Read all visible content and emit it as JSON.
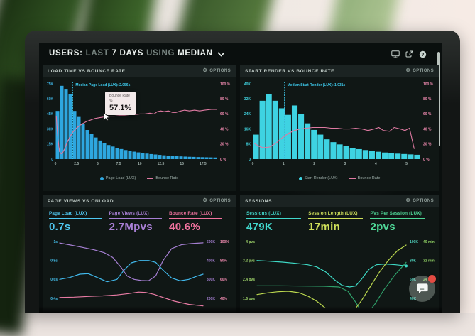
{
  "header": {
    "segments": [
      {
        "t": "USERS:",
        "style": "em"
      },
      {
        "t": "LAST",
        "style": "dim"
      },
      {
        "t": "7 DAYS",
        "style": "em"
      },
      {
        "t": "USING",
        "style": "dim"
      },
      {
        "t": "MEDIAN",
        "style": "em"
      }
    ],
    "icons": [
      "display-icon",
      "share-icon",
      "help-icon"
    ]
  },
  "panels": {
    "load_time": {
      "title": "LOAD TIME VS BOUNCE RATE",
      "options": "OPTIONS"
    },
    "start_render": {
      "title": "START RENDER VS BOUNCE RATE",
      "options": "OPTIONS"
    },
    "page_views": {
      "title": "PAGE VIEWS VS ONLOAD",
      "options": "OPTIONS",
      "metrics": [
        {
          "label": "Page Load (LUX)",
          "value": "0.7s",
          "color": "#4fc8f2"
        },
        {
          "label": "Page Views (LUX)",
          "value": "2.7Mpvs",
          "color": "#a87fd4"
        },
        {
          "label": "Bounce Rate (LUX)",
          "value": "40.6%",
          "color": "#f2739f"
        }
      ]
    },
    "sessions": {
      "title": "SESSIONS",
      "options": "OPTIONS",
      "metrics": [
        {
          "label": "Sessions (LUX)",
          "value": "479K",
          "color": "#41d8cc"
        },
        {
          "label": "Session Length (LUX)",
          "value": "17min",
          "color": "#cfe05a"
        },
        {
          "label": "PVs Per Session (LUX)",
          "value": "2pvs",
          "color": "#4fd998"
        }
      ]
    }
  },
  "chart_data": [
    {
      "type": "bar",
      "title": "LOAD TIME VS BOUNCE RATE",
      "xlim": [
        0,
        19.2
      ],
      "x_ticks": [
        0,
        2.5,
        5,
        7.5,
        10,
        12.5,
        15,
        17.5
      ],
      "y_left": {
        "ticks": [
          "75K",
          "60K",
          "45K",
          "30K",
          "15K",
          "0"
        ],
        "values": [
          75,
          60,
          45,
          30,
          15,
          0
        ],
        "color": "#3fb4e4"
      },
      "y_right": {
        "ticks": [
          "100 %",
          "80 %",
          "60 %",
          "40 %",
          "20 %",
          "0 %"
        ],
        "values": [
          100,
          80,
          60,
          40,
          20,
          0
        ],
        "color": "#ea87ac"
      },
      "bars": {
        "label": "Page Load (LUX)",
        "color": "#2ea7e0",
        "bin_width_s": 0.5,
        "values_k": [
          48,
          73,
          70,
          65,
          48,
          42,
          35,
          29,
          25,
          21.5,
          18.5,
          16,
          14,
          12.5,
          11,
          10,
          9,
          8.2,
          7.4,
          6.7,
          6.1,
          5.5,
          5,
          4.6,
          4.2,
          3.8,
          3.5,
          3.2,
          3,
          2.7,
          2.5,
          2.3,
          2.2,
          2,
          1.9,
          1.8,
          1.7,
          1.6
        ]
      },
      "line": {
        "label": "Bounce Rate",
        "color": "#df7aa2",
        "points_pct": [
          [
            0.1,
            57
          ],
          [
            0.3,
            27
          ],
          [
            0.5,
            10
          ],
          [
            0.7,
            7
          ],
          [
            0.9,
            9
          ],
          [
            1.1,
            14
          ],
          [
            1.4,
            22
          ],
          [
            1.7,
            29
          ],
          [
            2.0,
            35
          ],
          [
            2.4,
            40
          ],
          [
            2.8,
            44
          ],
          [
            3.2,
            47
          ],
          [
            3.7,
            50
          ],
          [
            4.2,
            52
          ],
          [
            4.7,
            54
          ],
          [
            5.2,
            55
          ],
          [
            5.8,
            56
          ],
          [
            6.4,
            57
          ],
          [
            7.0,
            57
          ],
          [
            7.6,
            58
          ],
          [
            8.2,
            58
          ],
          [
            8.8,
            59
          ],
          [
            9.4,
            59
          ],
          [
            10.0,
            60
          ],
          [
            10.6,
            60
          ],
          [
            11.2,
            61
          ],
          [
            11.7,
            60
          ],
          [
            12.1,
            63
          ],
          [
            12.5,
            64
          ],
          [
            12.9,
            63
          ],
          [
            13.4,
            64
          ],
          [
            13.9,
            62
          ],
          [
            14.3,
            62
          ],
          [
            14.9,
            64
          ],
          [
            15.3,
            65
          ],
          [
            15.9,
            64
          ],
          [
            16.5,
            65
          ],
          [
            17.1,
            64
          ],
          [
            17.7,
            65
          ],
          [
            18.5,
            66
          ],
          [
            19.1,
            66
          ]
        ]
      },
      "median": {
        "x": 2.056,
        "label": "Median Page Load (LUX): 2.056s",
        "color": "#3ecbee"
      },
      "tooltip": {
        "series": "Bounce Rate",
        "unit": "%",
        "value": "57.1%",
        "x_s": 4.55,
        "value_pct": 57.1
      }
    },
    {
      "type": "bar",
      "title": "START RENDER VS BOUNCE RATE",
      "xlim": [
        0,
        5.45
      ],
      "x_ticks": [
        0,
        1,
        2,
        3,
        4,
        5
      ],
      "y_left": {
        "ticks": [
          "40K",
          "32K",
          "24K",
          "16K",
          "8K",
          "0"
        ],
        "values": [
          40,
          32,
          24,
          16,
          8,
          0
        ],
        "color": "#3fd0dc"
      },
      "y_right": {
        "ticks": [
          "100 %",
          "80 %",
          "60 %",
          "40 %",
          "20 %",
          "0 %"
        ],
        "values": [
          100,
          80,
          60,
          40,
          20,
          0
        ],
        "color": "#ea87ac"
      },
      "bars": {
        "label": "Start Render (LUX)",
        "color": "#3ed3e2",
        "bin_width_s": 0.2,
        "values_k": [
          13,
          31,
          34.5,
          31,
          27,
          23.5,
          28.5,
          24,
          19,
          15.5,
          13,
          10.5,
          9,
          7.8,
          6.8,
          6,
          5.3,
          4.8,
          4.3,
          3.9,
          3.5,
          3.2,
          2.9,
          2.7,
          2.5,
          2.3
        ]
      },
      "line": {
        "label": "Bounce Rate",
        "color": "#df7aa2",
        "points_pct": [
          [
            0.05,
            21
          ],
          [
            0.2,
            17
          ],
          [
            0.35,
            15
          ],
          [
            0.55,
            16
          ],
          [
            0.75,
            21
          ],
          [
            0.95,
            28
          ],
          [
            1.15,
            34
          ],
          [
            1.35,
            38
          ],
          [
            1.55,
            40
          ],
          [
            1.75,
            41
          ],
          [
            1.95,
            42
          ],
          [
            2.15,
            42
          ],
          [
            2.35,
            42
          ],
          [
            2.55,
            41
          ],
          [
            2.75,
            41
          ],
          [
            2.95,
            40
          ],
          [
            3.15,
            40
          ],
          [
            3.35,
            41
          ],
          [
            3.55,
            40
          ],
          [
            3.75,
            38
          ],
          [
            3.95,
            40
          ],
          [
            4.1,
            42
          ],
          [
            4.25,
            38
          ],
          [
            4.45,
            37
          ],
          [
            4.6,
            42
          ],
          [
            4.8,
            40
          ],
          [
            4.95,
            38
          ],
          [
            5.1,
            41
          ],
          [
            5.25,
            14
          ]
        ]
      },
      "median": {
        "x": 1.031,
        "label": "Median Start Render (LUX): 1.031s",
        "color": "#3ecbee"
      }
    },
    {
      "type": "line",
      "title": "PAGE VIEWS VS ONLOAD",
      "axes": {
        "left": {
          "ticks": [
            "1s",
            "0.8s",
            "0.6s",
            "0.4s"
          ],
          "values": [
            1,
            0.8,
            0.6,
            0.4
          ],
          "color": "#45c1ee"
        },
        "right1": {
          "ticks": [
            "500K",
            "400K",
            "300K",
            "200K"
          ],
          "values": [
            500,
            400,
            300,
            200
          ],
          "color": "#a57fd2"
        },
        "right2": {
          "ticks": [
            "100%",
            "80%",
            "60%",
            "40%"
          ],
          "values": [
            100,
            80,
            60,
            40
          ],
          "color": "#ea87ac"
        }
      },
      "series": [
        {
          "name": "Page Load (LUX)",
          "axis": "left",
          "unit": "s",
          "color": "#41b9ec",
          "points": [
            [
              0,
              0.6
            ],
            [
              0.07,
              0.62
            ],
            [
              0.14,
              0.655
            ],
            [
              0.2,
              0.66
            ],
            [
              0.27,
              0.615
            ],
            [
              0.33,
              0.575
            ],
            [
              0.4,
              0.6
            ],
            [
              0.45,
              0.7
            ],
            [
              0.5,
              0.775
            ],
            [
              0.56,
              0.8
            ],
            [
              0.62,
              0.8
            ],
            [
              0.67,
              0.78
            ],
            [
              0.72,
              0.7
            ],
            [
              0.78,
              0.615
            ],
            [
              0.84,
              0.585
            ],
            [
              0.9,
              0.6
            ],
            [
              0.95,
              0.63
            ],
            [
              1,
              0.655
            ]
          ]
        },
        {
          "name": "Page Views (LUX)",
          "axis": "right1",
          "unit": "K pvs",
          "color": "#a57fd2",
          "points": [
            [
              0,
              492
            ],
            [
              0.08,
              481
            ],
            [
              0.16,
              469
            ],
            [
              0.24,
              456
            ],
            [
              0.31,
              441
            ],
            [
              0.37,
              416
            ],
            [
              0.43,
              362
            ],
            [
              0.47,
              318
            ],
            [
              0.52,
              300
            ],
            [
              0.57,
              294
            ],
            [
              0.62,
              293
            ],
            [
              0.67,
              318
            ],
            [
              0.72,
              398
            ],
            [
              0.78,
              462
            ],
            [
              0.85,
              483
            ],
            [
              0.92,
              489
            ],
            [
              1,
              493
            ]
          ]
        },
        {
          "name": "Bounce Rate (LUX)",
          "axis": "right2",
          "unit": "%",
          "color": "#e87ba4",
          "points": [
            [
              0,
              41
            ],
            [
              0.1,
              41.3
            ],
            [
              0.2,
              42
            ],
            [
              0.3,
              42.6
            ],
            [
              0.4,
              43.6
            ],
            [
              0.48,
              45
            ],
            [
              0.55,
              46.6
            ],
            [
              0.6,
              46.2
            ],
            [
              0.66,
              44.2
            ],
            [
              0.72,
              41
            ],
            [
              0.8,
              37
            ],
            [
              0.9,
              33.6
            ],
            [
              1,
              32
            ]
          ]
        }
      ]
    },
    {
      "type": "line",
      "title": "SESSIONS",
      "axes": {
        "left": {
          "ticks": [
            "4 pvs",
            "3.2 pvs",
            "2.4 pvs",
            "1.6 pvs"
          ],
          "values": [
            4,
            3.2,
            2.4,
            1.6
          ],
          "color": "#9ed36a"
        },
        "right1": {
          "ticks": [
            "100K",
            "80K",
            "60K",
            "40K"
          ],
          "values": [
            100,
            80,
            60,
            40
          ],
          "color": "#4fd2bd"
        },
        "right2": {
          "ticks": [
            "40 min",
            "32 min",
            "24 min",
            ""
          ],
          "values": [
            40,
            32,
            24,
            16
          ],
          "color": "#8fcf63"
        }
      },
      "series": [
        {
          "name": "Sessions (LUX)",
          "axis": "left",
          "color": "#3ed9c5",
          "end_dot": true,
          "points": [
            [
              0,
              3.2
            ],
            [
              0.08,
              3.17
            ],
            [
              0.17,
              3.13
            ],
            [
              0.26,
              3.08
            ],
            [
              0.34,
              3.02
            ],
            [
              0.4,
              2.93
            ],
            [
              0.46,
              2.72
            ],
            [
              0.52,
              2.38
            ],
            [
              0.57,
              2.15
            ],
            [
              0.62,
              2.08
            ],
            [
              0.66,
              2.12
            ],
            [
              0.7,
              2.4
            ],
            [
              0.75,
              2.82
            ],
            [
              0.8,
              3.02
            ],
            [
              0.86,
              3.05
            ],
            [
              0.93,
              3.02
            ],
            [
              1,
              2.97
            ]
          ]
        },
        {
          "name": "PVs Per Session (LUX)",
          "axis": "left",
          "color": "#2fa06a",
          "points": [
            [
              0,
              2.13
            ],
            [
              0.15,
              2.13
            ],
            [
              0.3,
              2.12
            ],
            [
              0.45,
              2.11
            ],
            [
              0.55,
              2.08
            ],
            [
              0.61,
              1.9
            ],
            [
              0.66,
              1.45
            ],
            [
              0.7,
              1.05
            ],
            [
              0.74,
              0.95
            ],
            [
              0.79,
              1.35
            ],
            [
              0.85,
              1.95
            ],
            [
              0.92,
              2.55
            ],
            [
              1,
              3.12
            ]
          ]
        },
        {
          "name": "Session Length (LUX)",
          "axis": "left",
          "color": "#bcd94f",
          "points": [
            [
              0,
              1.76
            ],
            [
              0.07,
              1.83
            ],
            [
              0.14,
              1.88
            ],
            [
              0.21,
              1.9
            ],
            [
              0.28,
              1.84
            ],
            [
              0.34,
              1.7
            ],
            [
              0.4,
              1.48
            ],
            [
              0.46,
              1.18
            ],
            [
              0.51,
              0.92
            ],
            [
              0.58,
              0.82
            ],
            [
              0.64,
              1.0
            ],
            [
              0.7,
              1.5
            ],
            [
              0.76,
              2.1
            ],
            [
              0.82,
              2.7
            ],
            [
              0.88,
              3.2
            ],
            [
              0.94,
              3.6
            ],
            [
              1,
              3.85
            ]
          ]
        }
      ]
    }
  ]
}
